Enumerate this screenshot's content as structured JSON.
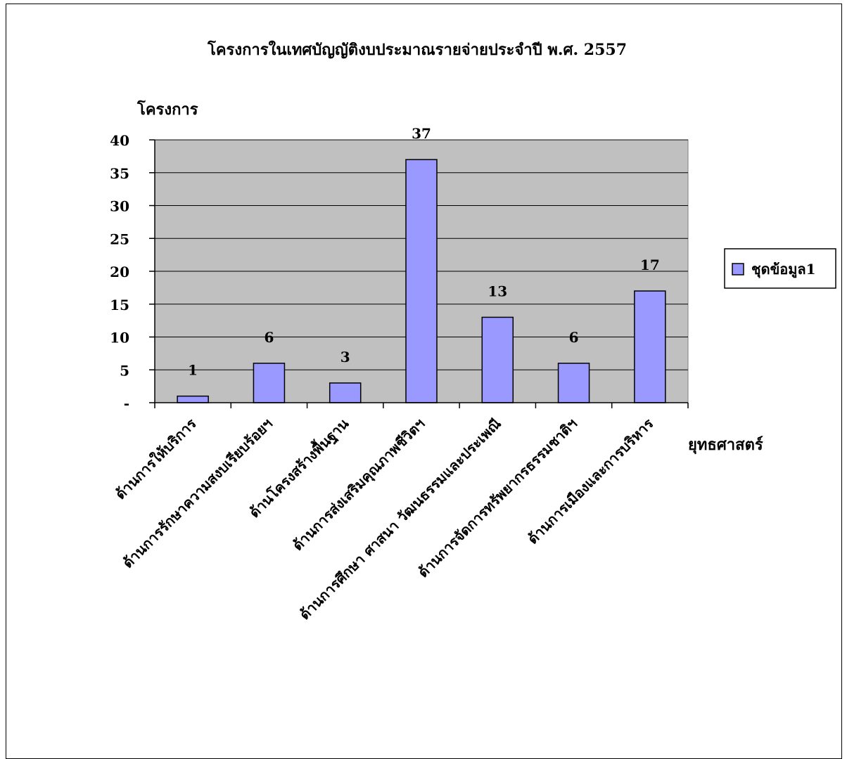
{
  "chart_data": {
    "type": "bar",
    "title": "โครงการในเทศบัญญัติงบประมาณรายจ่ายประจำปี พ.ศ. 2557",
    "xlabel": "ยุทธศาสตร์",
    "ylabel": "โครงการ",
    "categories": [
      "ด้านการให้บริการ",
      "ด้านการรักษาความสงบเรียบร้อยฯ",
      "ด้านโครงสร้างพื้นฐาน",
      "ด้านการส่งเสริมคุณภาพชีวิตฯ",
      "ด้านการศึกษา ศาสนา วัฒนธรรมและประเพณี",
      "ด้านการจัดการทรัพยากรธรรมชาติฯ",
      "ด้านการเมืองและการบริหาร"
    ],
    "series": [
      {
        "name": "ชุดข้อมูล1",
        "values": [
          1,
          6,
          3,
          37,
          13,
          6,
          17
        ]
      }
    ],
    "data_labels": [
      "1",
      "6",
      "3",
      "37",
      "13",
      "6",
      "17"
    ],
    "y_ticks": [
      "-",
      "5",
      "10",
      "15",
      "20",
      "25",
      "30",
      "35",
      "40"
    ],
    "ylim": [
      0,
      40
    ],
    "grid": true,
    "legend_position": "right",
    "colors": {
      "bar_fill": "#9999ff",
      "plot_background": "#c0c0c0",
      "gridline": "#000000"
    }
  }
}
